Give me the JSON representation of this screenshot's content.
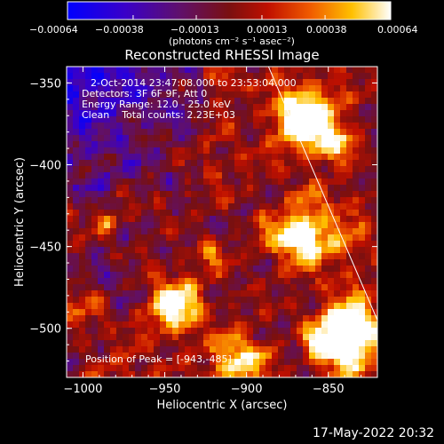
{
  "chart_data": {
    "type": "heatmap",
    "title": "Reconstructed RHESSI Image",
    "xlabel": "Heliocentric X (arcsec)",
    "ylabel": "Heliocentric Y (arcsec)",
    "xlim": [
      -1010,
      -820
    ],
    "ylim": [
      -530,
      -340
    ],
    "xticks": [
      -1000,
      -950,
      -900,
      -850
    ],
    "yticks": [
      -350,
      -400,
      -450,
      -500
    ],
    "xtick_labels": [
      "−1000",
      "−950",
      "−900",
      "−850"
    ],
    "ytick_labels": [
      "−350",
      "−400",
      "−450",
      "−500"
    ],
    "colorbar": {
      "ticks": [
        -0.00064,
        -0.00038,
        -0.00013,
        0.00013,
        0.00038,
        0.00064
      ],
      "tick_labels": [
        "−0.00064",
        "−0.00038",
        "−0.00013",
        "0.00013",
        "0.00038",
        "0.00064"
      ],
      "unit_label": "(photons cm⁻² s⁻¹ asec⁻²)",
      "min": -0.00064,
      "max": 0.00064
    },
    "info_lines": [
      "2-Oct-2014 23:47:08.000 to 23:53:04.000",
      "Detectors: 3F 6F 9F, Att 0",
      "Energy Range: 12.0 - 25.0 keV",
      "Clean    Total counts: 2.23E+03"
    ],
    "peak_label": "Position of Peak = [-943,-485]",
    "peak": {
      "x": -943,
      "y": -485
    },
    "limb_line": {
      "x1": -887,
      "y1": -339,
      "x2": -820,
      "y2": -495
    },
    "grid": false
  },
  "footer_timestamp": "17-May-2022 20:32"
}
